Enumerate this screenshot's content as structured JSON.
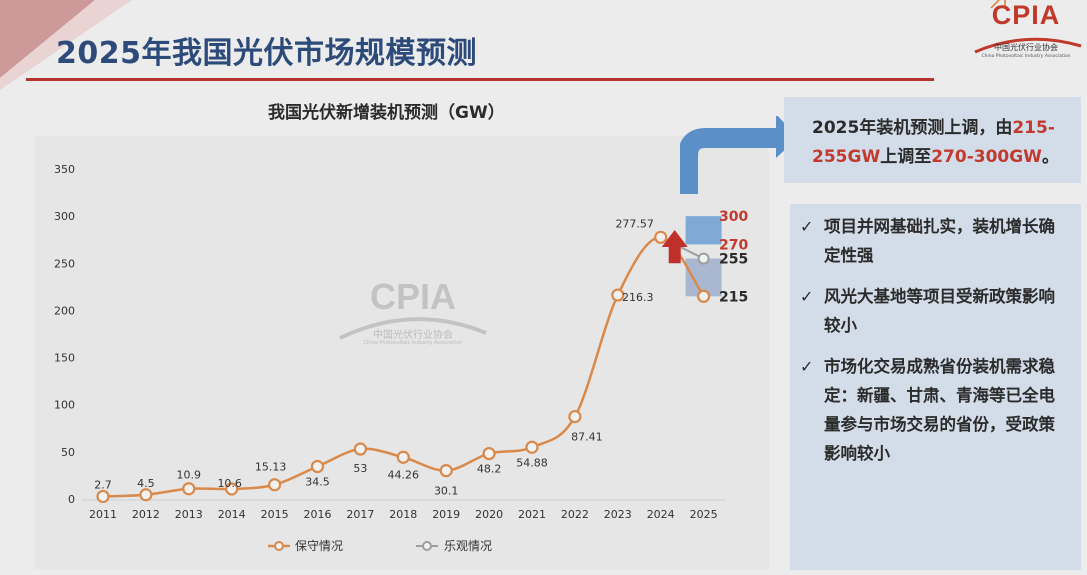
{
  "page": {
    "title": "2025年我国光伏市场规模预测",
    "logo": "CPIA",
    "logo_subtitle": "中国光伏行业协会",
    "logo_subtitle_en": "China Photovoltaic Industry Association",
    "watermark": "CPIA",
    "watermark_subtitle": "中国光伏行业协会",
    "watermark_subtitle_en": "China Photovoltaic Industry Association",
    "accent_color": "#b8332f",
    "title_color": "#2c4a7a"
  },
  "callout": {
    "p1": "2025年装机预测上调，由",
    "r1": "215-255GW",
    "p2": "上调至",
    "r2": "270-300GW",
    "p3": "。"
  },
  "bullets": [
    "项目并网基础扎实，装机增长确定性强",
    "风光大基地等项目受新政策影响较小",
    "市场化交易成熟省份装机需求稳定：新疆、甘肃、青海等已全电量参与市场交易的省份，受政策影响较小"
  ],
  "chart_data": {
    "type": "line",
    "title": "我国光伏新增装机预测（GW）",
    "x": [
      "2011",
      "2012",
      "2013",
      "2014",
      "2015",
      "2016",
      "2017",
      "2018",
      "2019",
      "2020",
      "2021",
      "2022",
      "2023",
      "2024",
      "2025"
    ],
    "ylim": [
      0,
      350
    ],
    "yticks": [
      0,
      50,
      100,
      150,
      200,
      250,
      300,
      350
    ],
    "grid": false,
    "legend_position": "bottom",
    "series": [
      {
        "name": "保守情况",
        "color": "#d9894a",
        "values": [
          2.7,
          4.5,
          10.9,
          10.6,
          15.13,
          34.5,
          53,
          44.26,
          30.1,
          48.2,
          54.88,
          87.41,
          216.3,
          277.57,
          215
        ],
        "labels": [
          "2.7",
          "4.5",
          "10.9",
          "10.6",
          "15.13",
          "34.5",
          "53",
          "44.26",
          "30.1",
          "48.2",
          "54.88",
          "87.41",
          "216.3",
          "277.57",
          ""
        ]
      },
      {
        "name": "乐观情况",
        "color": "#9e9e9e",
        "values": [
          null,
          null,
          null,
          null,
          null,
          null,
          null,
          null,
          null,
          null,
          null,
          null,
          null,
          277.57,
          255
        ]
      }
    ],
    "forecast_2025": {
      "previous": {
        "low": 215,
        "high": 255,
        "color": "#a9b8d0"
      },
      "revised": {
        "low": 270,
        "high": 300,
        "color": "#7fa9d6"
      },
      "labels": [
        {
          "text": "300",
          "value": 300,
          "color": "#c23a2e"
        },
        {
          "text": "270",
          "value": 270,
          "color": "#c23a2e"
        },
        {
          "text": "255",
          "value": 255,
          "color": "#2b2b2b"
        },
        {
          "text": "215",
          "value": 215,
          "color": "#2b2b2b"
        }
      ],
      "up_arrow_color": "#c0302a"
    }
  }
}
